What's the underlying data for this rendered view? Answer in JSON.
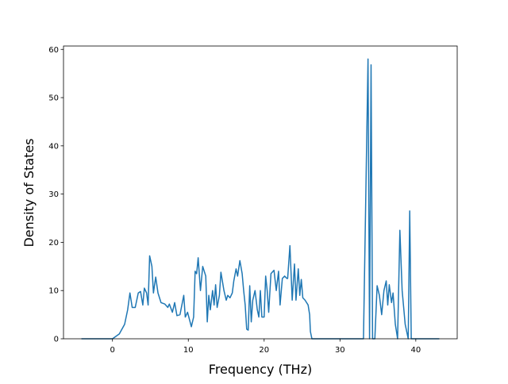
{
  "chart_data": {
    "type": "line",
    "xlabel": "Frequency (THz)",
    "ylabel": "Density of States",
    "xlim": [
      -6.46,
      45.46
    ],
    "ylim": [
      0,
      60.7
    ],
    "xticks": [
      0,
      10,
      20,
      30,
      40
    ],
    "yticks": [
      0,
      10,
      20,
      30,
      40,
      50,
      60
    ],
    "series": [
      {
        "color": "#1f77b4",
        "x": [
          -4.1,
          0,
          0.9,
          1.6,
          2.0,
          2.3,
          2.6,
          3.0,
          3.4,
          3.7,
          4.0,
          4.2,
          4.5,
          4.7,
          4.9,
          5.2,
          5.4,
          5.7,
          6.0,
          6.4,
          6.9,
          7.3,
          7.5,
          7.9,
          8.2,
          8.5,
          8.9,
          9.4,
          9.6,
          9.9,
          10.4,
          10.7,
          10.9,
          11.1,
          11.3,
          11.6,
          11.9,
          12.3,
          12.5,
          12.7,
          12.9,
          13.2,
          13.4,
          13.6,
          13.8,
          14.1,
          14.3,
          14.7,
          15.0,
          15.2,
          15.5,
          15.8,
          16.0,
          16.3,
          16.5,
          16.8,
          17.1,
          17.3,
          17.5,
          17.7,
          17.9,
          18.1,
          18.3,
          18.5,
          18.8,
          19.1,
          19.3,
          19.5,
          19.7,
          20.0,
          20.2,
          20.4,
          20.6,
          20.9,
          21.3,
          21.6,
          21.9,
          22.1,
          22.4,
          22.7,
          23.0,
          23.1,
          23.4,
          23.7,
          24.0,
          24.2,
          24.5,
          24.7,
          24.9,
          25.1,
          25.4,
          25.8,
          26.0,
          26.1,
          26.3,
          33.1,
          33.7,
          33.9,
          34.1,
          34.3,
          34.6,
          34.9,
          35.2,
          35.5,
          35.8,
          36.1,
          36.3,
          36.5,
          36.8,
          37.0,
          37.3,
          37.6,
          37.9,
          38.2,
          38.6,
          39.0,
          39.2,
          39.4,
          43.1
        ],
        "values": [
          0,
          0,
          1,
          3,
          6,
          9.5,
          6.5,
          6.5,
          9.5,
          9.8,
          7,
          10.5,
          9.5,
          7,
          17.2,
          15,
          9.5,
          12.8,
          9.5,
          7.5,
          7.2,
          6.5,
          7.2,
          5.5,
          7.5,
          4.8,
          5,
          9,
          4.5,
          5.5,
          2.5,
          4.5,
          14,
          13.5,
          16.8,
          10,
          15,
          13,
          3.5,
          9,
          6,
          10,
          7,
          11.2,
          6.5,
          9,
          13.8,
          10,
          8,
          9,
          8.5,
          9.5,
          12,
          14.5,
          13,
          16.2,
          13.5,
          10,
          7,
          2,
          1.8,
          11,
          3.5,
          8,
          10,
          6,
          4.5,
          10,
          4.5,
          4.5,
          13,
          10,
          5.5,
          13.5,
          14.2,
          10,
          14,
          7,
          12.5,
          13,
          12.5,
          12.5,
          19.3,
          8,
          15.5,
          8,
          14.5,
          9,
          12.3,
          8.5,
          8,
          7,
          5,
          1.5,
          0,
          0,
          58,
          0,
          56.8,
          0,
          0,
          11,
          9,
          5,
          10,
          12,
          7,
          11.2,
          7.5,
          9.5,
          3,
          0,
          22.5,
          10,
          3,
          0,
          26.5,
          0,
          0
        ]
      }
    ]
  }
}
